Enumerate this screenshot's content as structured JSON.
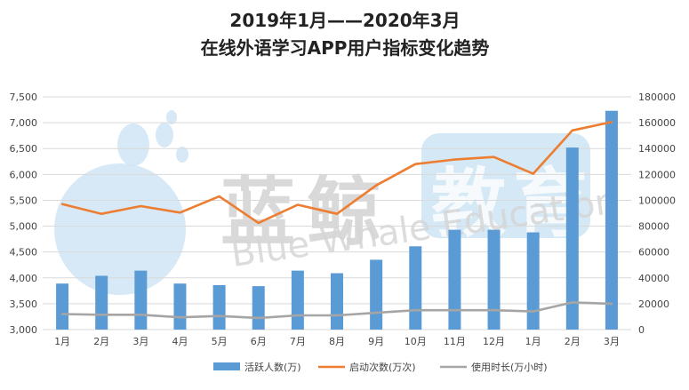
{
  "title_line1": "2019年1月——2020年3月",
  "title_line2": "在线外语学习APP用户指标变化趋势",
  "watermark": {
    "brand_cn_1": "蓝",
    "brand_cn_2": "鲸",
    "brand_cn_3": "教",
    "brand_cn_4": "育",
    "brand_en": "Blue Whale Education"
  },
  "legend": {
    "items": [
      "活跃人数(万)",
      "启动次数(万次)",
      "使用时长(万小时)"
    ]
  },
  "colors": {
    "bar": "#5b9bd5",
    "line_launch": "#ed7d31",
    "line_duration": "#a5a5a5",
    "grid": "#d9d9d9",
    "watermark": "#c9e2f3"
  },
  "chart_data": {
    "type": "bar",
    "categories": [
      "1月",
      "2月",
      "3月",
      "4月",
      "5月",
      "6月",
      "7月",
      "8月",
      "9月",
      "10月",
      "11月",
      "12月",
      "1月",
      "2月",
      "3月"
    ],
    "y_left": {
      "ticks": [
        "3,000",
        "3,500",
        "4,000",
        "4,500",
        "5,000",
        "5,500",
        "6,000",
        "6,500",
        "7,000",
        "7,500"
      ],
      "min": 3000,
      "max": 7500
    },
    "y_right": {
      "ticks": [
        "0",
        "20000",
        "40000",
        "60000",
        "80000",
        "100000",
        "120000",
        "140000",
        "160000",
        "180000"
      ],
      "min": 0,
      "max": 180000
    },
    "grid": true,
    "legend_position": "bottom",
    "series": [
      {
        "name": "活跃人数(万)",
        "type": "bar",
        "axis": "left",
        "values": [
          3890,
          4040,
          4140,
          3890,
          3860,
          3840,
          4140,
          4090,
          4350,
          4610,
          4930,
          4930,
          4880,
          6520,
          7230
        ]
      },
      {
        "name": "启动次数(万次)",
        "type": "line",
        "axis": "right",
        "values": [
          97000,
          89500,
          95500,
          90500,
          103000,
          82500,
          96500,
          89500,
          111500,
          128000,
          131500,
          133500,
          120500,
          154000,
          160500
        ]
      },
      {
        "name": "使用时长(万小时)",
        "type": "line",
        "axis": "right",
        "values": [
          12000,
          11500,
          11500,
          9500,
          10500,
          9000,
          11000,
          11000,
          13000,
          15000,
          15000,
          15000,
          14000,
          21000,
          20000
        ]
      }
    ]
  }
}
